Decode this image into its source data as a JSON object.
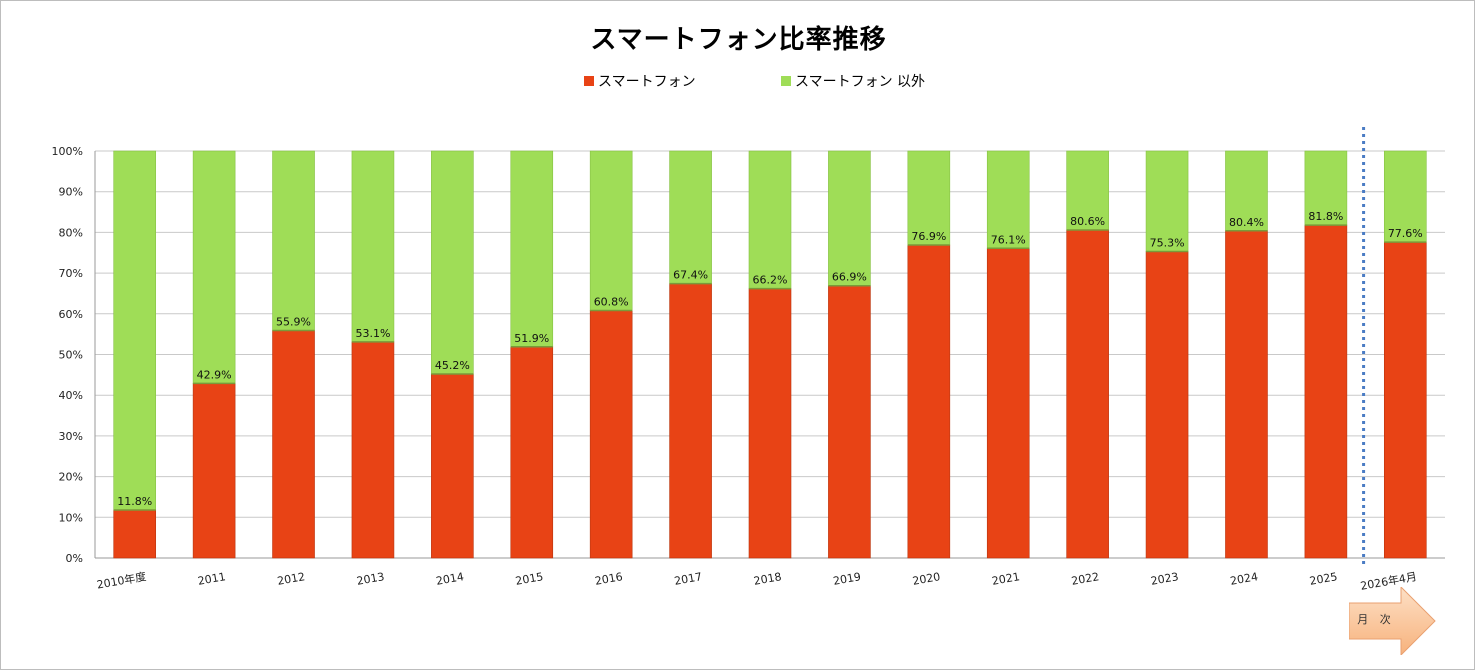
{
  "chart_data": {
    "type": "bar",
    "stacked": true,
    "title": "スマートフォン比率推移",
    "categories": [
      "2010年度",
      "2011",
      "2012",
      "2013",
      "2014",
      "2015",
      "2016",
      "2017",
      "2018",
      "2019",
      "2020",
      "2021",
      "2022",
      "2023",
      "2024",
      "2025",
      "2026年4月"
    ],
    "series": [
      {
        "name": "スマートフォン",
        "color": "#e84315",
        "values": [
          11.8,
          42.9,
          55.9,
          53.1,
          45.2,
          51.9,
          60.8,
          67.4,
          66.2,
          66.9,
          76.9,
          76.1,
          80.6,
          75.3,
          80.4,
          81.8,
          77.6
        ]
      },
      {
        "name": "スマートフォン 以外",
        "color": "#9fdd57",
        "values": [
          88.2,
          57.1,
          44.1,
          46.9,
          54.8,
          48.1,
          39.2,
          32.6,
          33.8,
          33.1,
          23.1,
          23.9,
          19.4,
          24.7,
          19.6,
          18.2,
          22.4
        ]
      }
    ],
    "data_labels": [
      "11.8%",
      "42.9%",
      "55.9%",
      "53.1%",
      "45.2%",
      "51.9%",
      "60.8%",
      "67.4%",
      "66.2%",
      "66.9%",
      "76.9%",
      "76.1%",
      "80.6%",
      "75.3%",
      "80.4%",
      "81.8%",
      "77.6%"
    ],
    "y_ticks": [
      "0%",
      "10%",
      "20%",
      "30%",
      "40%",
      "50%",
      "60%",
      "70%",
      "80%",
      "90%",
      "100%"
    ],
    "ylim": [
      0,
      100
    ],
    "grid": true,
    "legend_position": "top-center",
    "annotation": {
      "divider": "dotted line between 2025 and 2026年4月",
      "divider_color": "#4a7cc4",
      "arrow_label": "月 次"
    }
  }
}
